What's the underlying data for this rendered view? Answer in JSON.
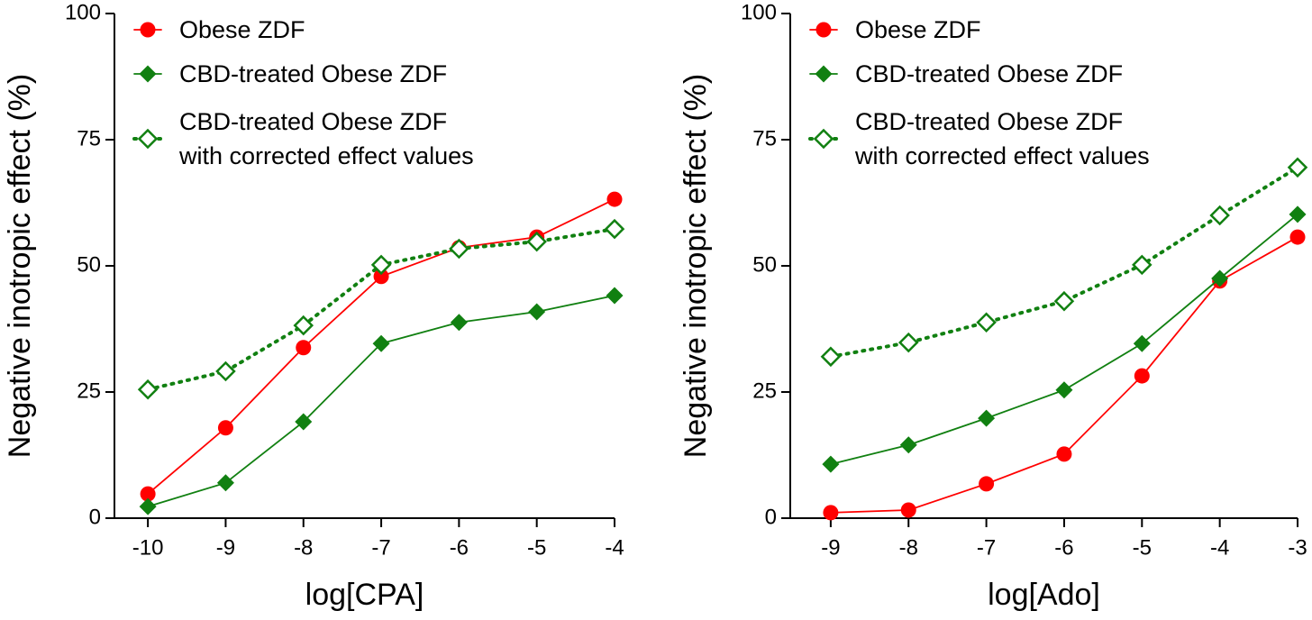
{
  "chart_data": [
    {
      "type": "line",
      "xlabel": "log[CPA]",
      "ylabel": "Negative inotropic effect (%)",
      "x": [
        -10,
        -9,
        -8,
        -7,
        -6,
        -5,
        -4
      ],
      "xlim": [
        -10.43,
        -4
      ],
      "xticks": [
        -10,
        -9,
        -8,
        -7,
        -6,
        -5,
        -4
      ],
      "ylim": [
        0,
        100
      ],
      "yticks": [
        0,
        25,
        50,
        75,
        100
      ],
      "series": [
        {
          "name": "Obese ZDF",
          "color": "#ff0000",
          "marker": "circle",
          "linestyle": "solid",
          "values": [
            4.8,
            17.9,
            33.8,
            47.9,
            53.6,
            55.7,
            63.2
          ]
        },
        {
          "name": "CBD-treated Obese ZDF",
          "color": "#118011",
          "marker": "diamond",
          "linestyle": "solid",
          "values": [
            2.3,
            7.0,
            19.1,
            34.6,
            38.8,
            40.9,
            44.1
          ]
        },
        {
          "name": "CBD-treated Obese ZDF\nwith corrected effect values",
          "color": "#118011",
          "marker": "diamond-open",
          "linestyle": "dotted",
          "values": [
            25.5,
            29.1,
            38.2,
            50.2,
            53.4,
            54.8,
            57.3
          ]
        }
      ]
    },
    {
      "type": "line",
      "xlabel": "log[Ado]",
      "ylabel": "Negative inotropic effect (%)",
      "x": [
        -9,
        -8,
        -7,
        -6,
        -5,
        -4,
        -3
      ],
      "xlim": [
        -9.52,
        -3
      ],
      "xticks": [
        -9,
        -8,
        -7,
        -6,
        -5,
        -4,
        -3
      ],
      "ylim": [
        0,
        100
      ],
      "yticks": [
        0,
        25,
        50,
        75,
        100
      ],
      "series": [
        {
          "name": "Obese ZDF",
          "color": "#ff0000",
          "marker": "circle",
          "linestyle": "solid",
          "values": [
            1.1,
            1.6,
            6.8,
            12.7,
            28.2,
            47.0,
            55.7
          ]
        },
        {
          "name": "CBD-treated Obese ZDF",
          "color": "#118011",
          "marker": "diamond",
          "linestyle": "solid",
          "values": [
            10.7,
            14.5,
            19.8,
            25.4,
            34.6,
            47.5,
            60.2
          ]
        },
        {
          "name": "CBD-treated Obese ZDF\nwith corrected effect values",
          "color": "#118011",
          "marker": "diamond-open",
          "linestyle": "dotted",
          "values": [
            32.0,
            34.8,
            38.8,
            43.0,
            50.2,
            60.0,
            69.5
          ]
        }
      ]
    }
  ]
}
